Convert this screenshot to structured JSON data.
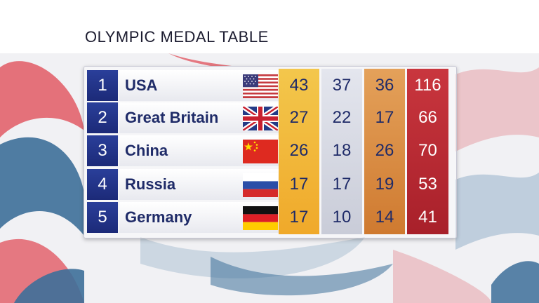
{
  "title": "OLYMPIC MEDAL TABLE",
  "colors": {
    "rank_blue": "#1c2a78",
    "gold": "#f0b030",
    "silver": "#d4d6e0",
    "bronze": "#d98a3e",
    "total_red": "#b22a32",
    "text_navy": "#1f2b68"
  },
  "rows": [
    {
      "rank": "1",
      "country": "USA",
      "flag_icon": "usa-flag-icon",
      "gold": "43",
      "silver": "37",
      "bronze": "36",
      "total": "116"
    },
    {
      "rank": "2",
      "country": "Great Britain",
      "flag_icon": "great-britain-flag-icon",
      "gold": "27",
      "silver": "22",
      "bronze": "17",
      "total": "66"
    },
    {
      "rank": "3",
      "country": "China",
      "flag_icon": "china-flag-icon",
      "gold": "26",
      "silver": "18",
      "bronze": "26",
      "total": "70"
    },
    {
      "rank": "4",
      "country": "Russia",
      "flag_icon": "russia-flag-icon",
      "gold": "17",
      "silver": "17",
      "bronze": "19",
      "total": "53"
    },
    {
      "rank": "5",
      "country": "Germany",
      "flag_icon": "germany-flag-icon",
      "gold": "17",
      "silver": "10",
      "bronze": "14",
      "total": "41"
    }
  ]
}
